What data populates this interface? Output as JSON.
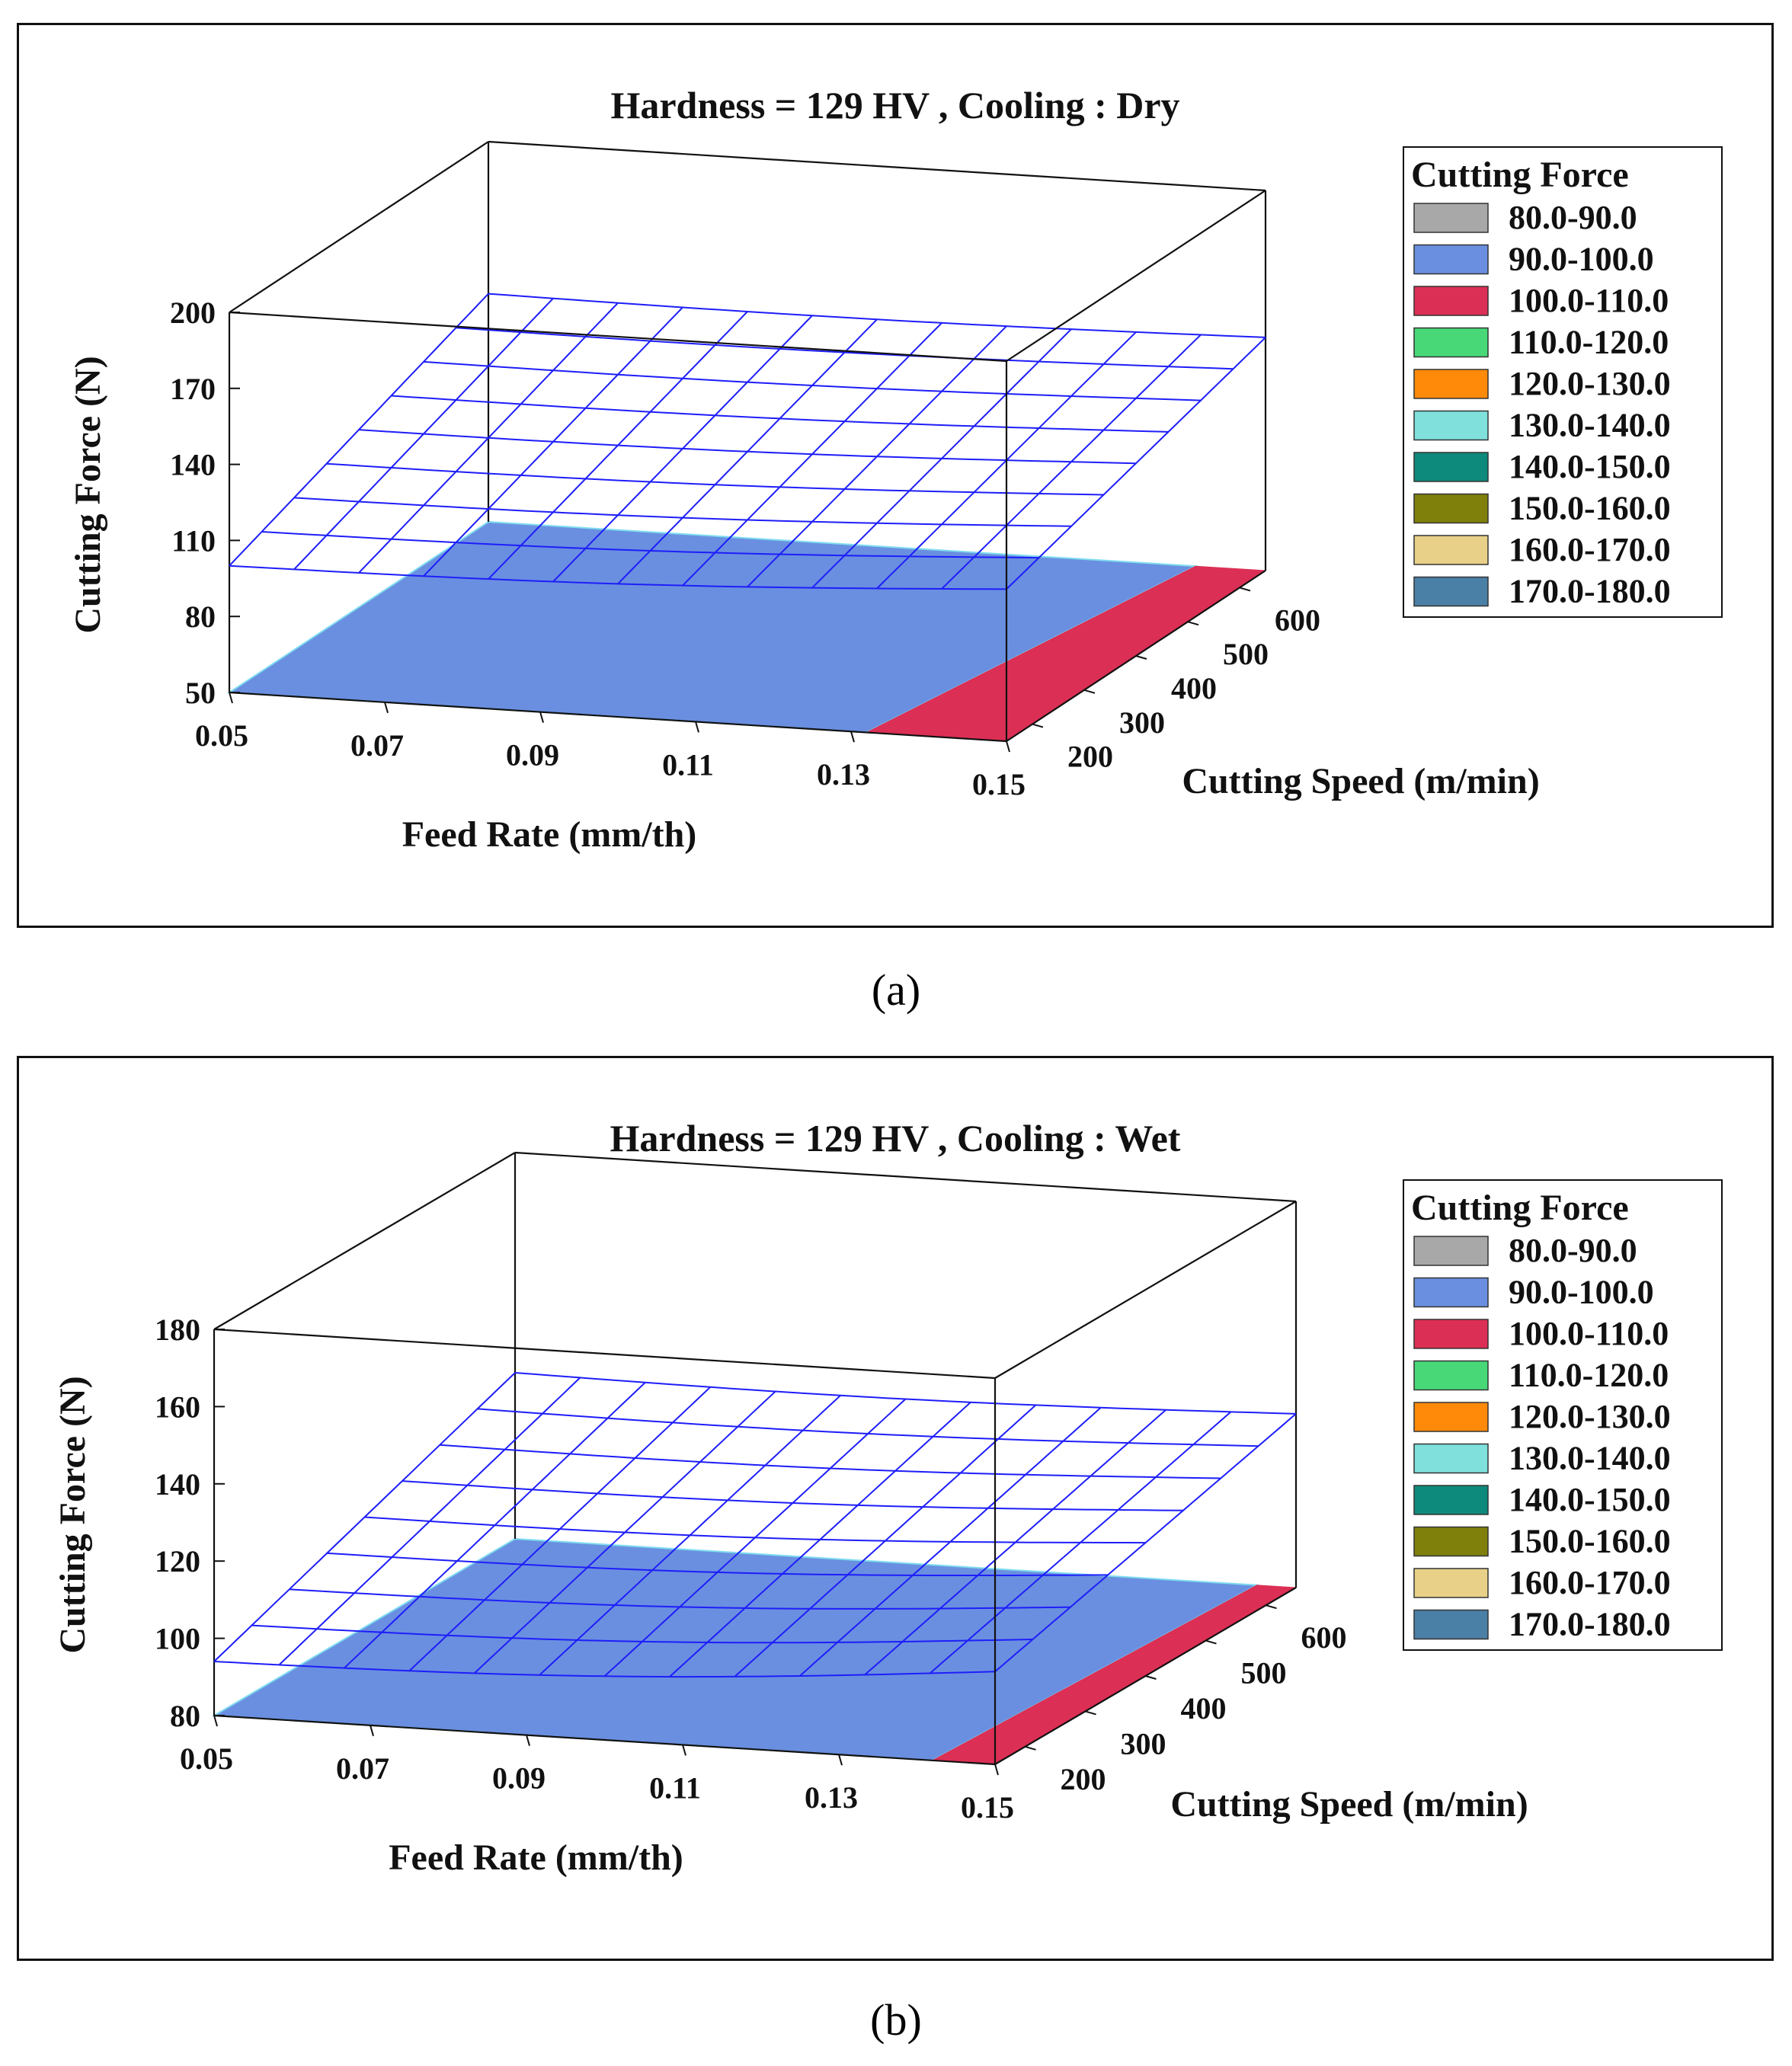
{
  "captions": [
    "(a)",
    "(b)"
  ],
  "chart_data": [
    {
      "type": "surface3d",
      "title": "Hardness = 129 HV , Cooling : Dry",
      "xlabel": "Feed Rate (mm/th)",
      "ylabel": "Cutting Speed (m/min)",
      "zlabel": "Cutting Force (N)",
      "x_ticks": [
        "0.05",
        "0.07",
        "0.09",
        "0.11",
        "0.13",
        "0.15"
      ],
      "x_range": [
        0.05,
        0.15
      ],
      "y_ticks": [
        "200",
        "300",
        "400",
        "500",
        "600"
      ],
      "y_range": [
        150,
        650
      ],
      "z_ticks": [
        "50",
        "80",
        "110",
        "140",
        "170",
        "200"
      ],
      "z_range": [
        50,
        200
      ],
      "surface_corners": {
        "x005_y150": 100,
        "x015_y150": 110,
        "x005_y650": 140,
        "x015_y650": 142
      },
      "contour_floor": [
        {
          "range": "90.0-100.0",
          "color": "#6a8fe0"
        },
        {
          "range": "100.0-110.0",
          "color": "#dc2f55",
          "boundary_x": [
            0.132,
            0.141
          ]
        }
      ],
      "legend": {
        "title": "Cutting Force",
        "entries": [
          {
            "label": "80.0-90.0",
            "color": "#a8a8a8"
          },
          {
            "label": "90.0-100.0",
            "color": "#6a8fe0"
          },
          {
            "label": "100.0-110.0",
            "color": "#dc2f55"
          },
          {
            "label": "110.0-120.0",
            "color": "#48d878"
          },
          {
            "label": "120.0-130.0",
            "color": "#ff8a0a"
          },
          {
            "label": "130.0-140.0",
            "color": "#7fe0dc"
          },
          {
            "label": "140.0-150.0",
            "color": "#0e8a7c"
          },
          {
            "label": "150.0-160.0",
            "color": "#7f7f0c"
          },
          {
            "label": "160.0-170.0",
            "color": "#e8d088"
          },
          {
            "label": "170.0-180.0",
            "color": "#4a7fa6"
          }
        ]
      }
    },
    {
      "type": "surface3d",
      "title": "Hardness = 129 HV , Cooling : Wet",
      "xlabel": "Feed Rate (mm/th)",
      "ylabel": "Cutting Speed (m/min)",
      "zlabel": "Cutting Force (N)",
      "x_ticks": [
        "0.05",
        "0.07",
        "0.09",
        "0.11",
        "0.13",
        "0.15"
      ],
      "x_range": [
        0.05,
        0.15
      ],
      "y_ticks": [
        "200",
        "300",
        "400",
        "500",
        "600"
      ],
      "y_range": [
        150,
        650
      ],
      "z_ticks": [
        "80",
        "100",
        "120",
        "140",
        "160",
        "180"
      ],
      "z_range": [
        80,
        180
      ],
      "surface_corners": {
        "x005_y150": 94,
        "x015_y150": 104,
        "x005_y650": 123,
        "x015_y650": 125
      },
      "contour_floor": [
        {
          "range": "90.0-100.0",
          "color": "#6a8fe0"
        },
        {
          "range": "100.0-110.0",
          "color": "#dc2f55",
          "boundary_x": [
            0.142,
            0.145
          ]
        }
      ],
      "legend": {
        "title": "Cutting Force",
        "entries": [
          {
            "label": "80.0-90.0",
            "color": "#a8a8a8"
          },
          {
            "label": "90.0-100.0",
            "color": "#6a8fe0"
          },
          {
            "label": "100.0-110.0",
            "color": "#dc2f55"
          },
          {
            "label": "110.0-120.0",
            "color": "#48d878"
          },
          {
            "label": "120.0-130.0",
            "color": "#ff8a0a"
          },
          {
            "label": "130.0-140.0",
            "color": "#7fe0dc"
          },
          {
            "label": "140.0-150.0",
            "color": "#0e8a7c"
          },
          {
            "label": "150.0-160.0",
            "color": "#7f7f0c"
          },
          {
            "label": "160.0-170.0",
            "color": "#e8d088"
          },
          {
            "label": "170.0-180.0",
            "color": "#4a7fa6"
          }
        ]
      }
    }
  ]
}
